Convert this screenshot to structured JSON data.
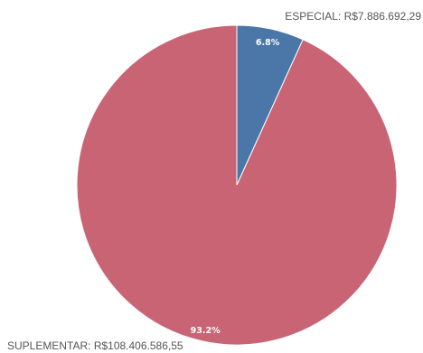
{
  "chart_data": {
    "type": "pie",
    "slices": [
      {
        "category": "ESPECIAL",
        "value": 7886692.29,
        "value_label": "R$7.886.692,29",
        "percent_label": "6.8%",
        "color": "#4a76a8"
      },
      {
        "category": "SUPLEMENTAR",
        "value": 108406586.55,
        "value_label": "R$108.406.586,55",
        "percent_label": "93.2%",
        "color": "#c96475"
      }
    ],
    "start_angle_deg": 0,
    "direction": "clockwise"
  }
}
